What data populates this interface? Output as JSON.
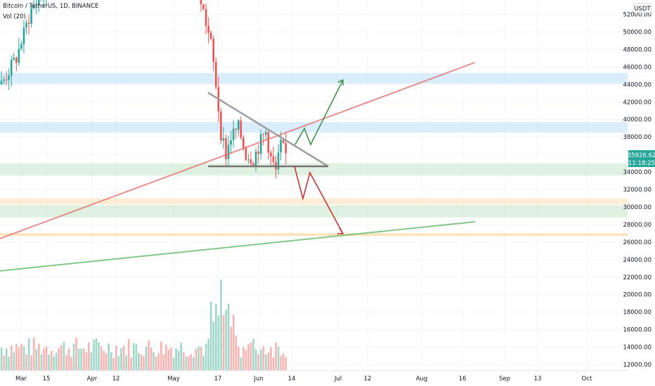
{
  "header": {
    "symbol_title": "Bitcoin / TetherUS, 1D, BINANCE",
    "volume_label": "Vol (20)"
  },
  "currency_badge": "USDT",
  "last_price": {
    "value": "35926.62",
    "countdown": "11:18:25"
  },
  "chart_data": {
    "type": "candlestick",
    "y_axis": {
      "ticks": [
        52000,
        50000,
        48000,
        46000,
        44000,
        42000,
        40000,
        38000,
        36000,
        34000,
        32000,
        30000,
        28000,
        26000,
        24000,
        22000,
        20000,
        18000,
        16000,
        14000,
        12000
      ],
      "labels": [
        "52000.00",
        "50000.00",
        "48000.00",
        "46000.00",
        "44000.00",
        "42000.00",
        "40000.00",
        "38000.00",
        "34000.00",
        "32000.00",
        "30000.00",
        "28000.00",
        "26000.00",
        "24000.00",
        "22000.00",
        "20000.00",
        "18000.00",
        "16000.00",
        "14000.00",
        "12000.00"
      ],
      "range": [
        11000,
        55000
      ]
    },
    "x_axis": {
      "labels": [
        "Mar",
        "15",
        "Apr",
        "12",
        "May",
        "17",
        "Jun",
        "14",
        "Jul",
        "12",
        "Aug",
        "16",
        "Sep",
        "13",
        "Oct"
      ]
    },
    "candles_visible_range": {
      "start": "Feb 2021",
      "end": "Jun 2021"
    },
    "colors": {
      "up": "#26a69a",
      "down": "#ef5350",
      "up_vol": "#9fd7c8",
      "down_vol": "#f6b3b1"
    },
    "zones": [
      {
        "from": 44100,
        "to": 45300,
        "color": "#bbdefb"
      },
      {
        "from": 38500,
        "to": 39700,
        "color": "#bbdefb"
      },
      {
        "from": 33600,
        "to": 35000,
        "color": "#c8e6c9"
      },
      {
        "from": 30300,
        "to": 31000,
        "color": "#ffe0b2"
      },
      {
        "from": 28800,
        "to": 30200,
        "color": "#c8e6c9"
      },
      {
        "from": 26700,
        "to": 27000,
        "color": "#ffcc80"
      }
    ],
    "drawings": {
      "red_trendline": "rising resistance line",
      "green_trendline": "rising support line",
      "triangle": "descending triangle",
      "bull_path": "breakout up",
      "bear_path": "breakdown down"
    }
  }
}
